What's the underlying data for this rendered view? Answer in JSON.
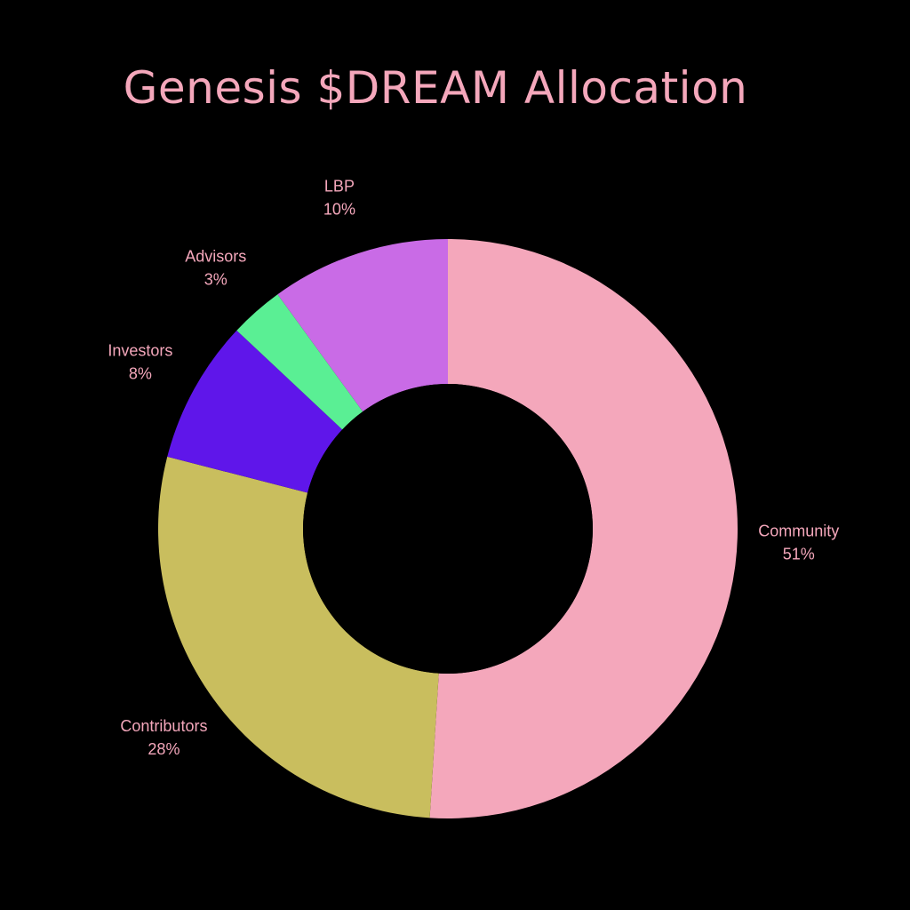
{
  "chart_data": {
    "type": "pie",
    "title": "Genesis $DREAM Allocation",
    "label_color": "#f4a7bb",
    "background": "#000000",
    "slices": [
      {
        "label": "Community",
        "value": 51,
        "value_label": "51%",
        "color": "#f4a7bb"
      },
      {
        "label": "Contributors",
        "value": 28,
        "value_label": "28%",
        "color": "#c9be5e"
      },
      {
        "label": "Investors",
        "value": 8,
        "value_label": "8%",
        "color": "#5f16ea"
      },
      {
        "label": "Advisors",
        "value": 3,
        "value_label": "3%",
        "color": "#5aef94"
      },
      {
        "label": "LBP",
        "value": 10,
        "value_label": "10%",
        "color": "#c96be6"
      }
    ]
  }
}
